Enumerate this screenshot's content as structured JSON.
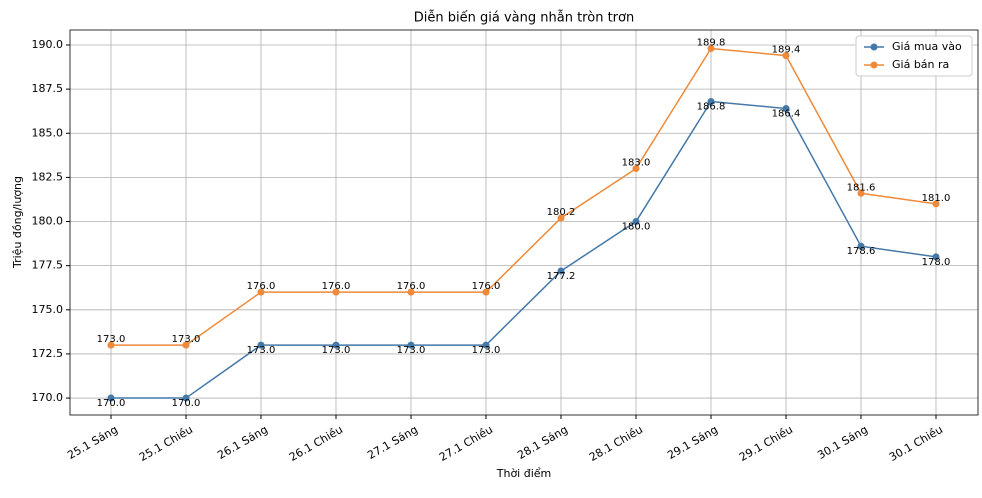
{
  "chart_data": {
    "type": "line",
    "title": "Diễn biến giá vàng nhẫn tròn trơn",
    "x_label": "Thời điểm",
    "y_label": "Triệu đồng/lượng",
    "categories": [
      "25.1 Sáng",
      "25.1 Chiều",
      "26.1 Sáng",
      "26.1 Chiều",
      "27.1 Sáng",
      "27.1 Chiều",
      "28.1 Sáng",
      "28.1 Chiều",
      "29.1 Sáng",
      "29.1 Chiều",
      "30.1 Sáng",
      "30.1 Chiều"
    ],
    "series": [
      {
        "name": "Giá mua vào",
        "color": "#4378a8",
        "values": [
          170,
          170,
          173,
          173,
          173,
          173,
          177.2,
          180,
          186.8,
          186.4,
          178.6,
          178
        ],
        "value_labels": [
          "170.0",
          "170.0",
          "173.0",
          "173.0",
          "173.0",
          "173.0",
          "177.2",
          "180.0",
          "186.8",
          "186.4",
          "178.6",
          "178.0"
        ]
      },
      {
        "name": "Giá bán ra",
        "color": "#ee8a3a",
        "values": [
          173,
          173,
          176,
          176,
          176,
          176,
          180.2,
          183,
          189.8,
          189.4,
          181.6,
          181
        ],
        "value_labels": [
          "173.0",
          "173.0",
          "176.0",
          "176.0",
          "176.0",
          "176.0",
          "180.2",
          "183.0",
          "189.8",
          "189.4",
          "181.6",
          "181.0"
        ]
      }
    ],
    "ylim": [
      169.04,
      190.85
    ],
    "yticks": [
      {
        "value": 170,
        "label": "170.0"
      },
      {
        "value": 172.5,
        "label": "172.5"
      },
      {
        "value": 175,
        "label": "175.0"
      },
      {
        "value": 177.5,
        "label": "177.5"
      },
      {
        "value": 180,
        "label": "180.0"
      },
      {
        "value": 182.5,
        "label": "182.5"
      },
      {
        "value": 185,
        "label": "185.0"
      },
      {
        "value": 187.5,
        "label": "187.5"
      },
      {
        "value": 190,
        "label": "190.0"
      }
    ],
    "grid": true,
    "legend": "upper-right"
  }
}
